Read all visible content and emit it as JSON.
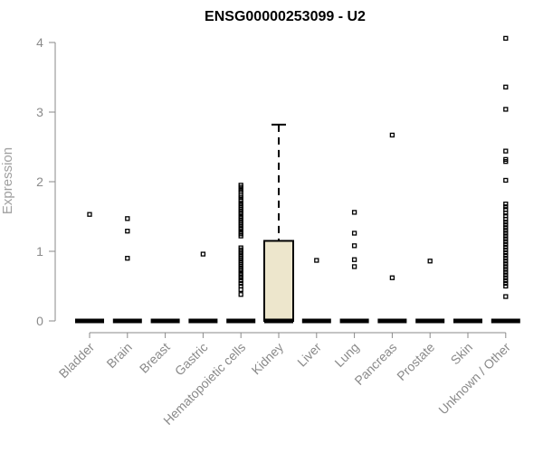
{
  "chart_data": {
    "type": "box",
    "title": "ENSG00000253099 - U2",
    "xlabel": "",
    "ylabel": "Expression",
    "ylim": [
      0,
      4.1
    ],
    "y_ticks": [
      "0",
      "1",
      "2",
      "3",
      "4"
    ],
    "box_fill": "#ede6cc",
    "categories": [
      "Bladder",
      "Brain",
      "Breast",
      "Gastric",
      "Hematopoietic cells",
      "Kidney",
      "Liver",
      "Lung",
      "Pancreas",
      "Prostate",
      "Skin",
      "Unknown / Other"
    ],
    "groups": [
      {
        "name": "Bladder",
        "q1": 0,
        "median": 0,
        "q3": 0,
        "whisker_low": 0,
        "whisker_high": 0,
        "outliers": [
          1.53
        ]
      },
      {
        "name": "Brain",
        "q1": 0,
        "median": 0,
        "q3": 0,
        "whisker_low": 0,
        "whisker_high": 0,
        "outliers": [
          1.47,
          1.29,
          0.9
        ]
      },
      {
        "name": "Breast",
        "q1": 0,
        "median": 0,
        "q3": 0,
        "whisker_low": 0,
        "whisker_high": 0,
        "outliers": []
      },
      {
        "name": "Gastric",
        "q1": 0,
        "median": 0,
        "q3": 0,
        "whisker_low": 0,
        "whisker_high": 0,
        "outliers": [
          0.96
        ]
      },
      {
        "name": "Hematopoietic cells",
        "q1": 0,
        "median": 0,
        "q3": 0,
        "whisker_low": 0,
        "whisker_high": 0,
        "outliers": [
          1.95,
          1.92,
          1.88,
          1.85,
          1.8,
          1.77,
          1.73,
          1.69,
          1.66,
          1.63,
          1.6,
          1.57,
          1.54,
          1.5,
          1.47,
          1.44,
          1.41,
          1.38,
          1.35,
          1.32,
          1.28,
          1.25,
          1.22,
          1.05,
          1.02,
          0.99,
          0.96,
          0.93,
          0.9,
          0.87,
          0.84,
          0.81,
          0.78,
          0.75,
          0.72,
          0.68,
          0.65,
          0.62,
          0.58,
          0.54,
          0.5,
          0.45,
          0.38
        ]
      },
      {
        "name": "Kidney",
        "q1": 0,
        "median": 0,
        "q3": 1.15,
        "whisker_low": 0,
        "whisker_high": 2.82,
        "outliers": []
      },
      {
        "name": "Liver",
        "q1": 0,
        "median": 0,
        "q3": 0,
        "whisker_low": 0,
        "whisker_high": 0,
        "outliers": [
          0.87
        ]
      },
      {
        "name": "Lung",
        "q1": 0,
        "median": 0,
        "q3": 0,
        "whisker_low": 0,
        "whisker_high": 0,
        "outliers": [
          1.56,
          1.26,
          1.08,
          0.88,
          0.78
        ]
      },
      {
        "name": "Pancreas",
        "q1": 0,
        "median": 0,
        "q3": 0,
        "whisker_low": 0,
        "whisker_high": 0,
        "outliers": [
          2.67,
          0.62
        ]
      },
      {
        "name": "Prostate",
        "q1": 0,
        "median": 0,
        "q3": 0,
        "whisker_low": 0,
        "whisker_high": 0,
        "outliers": [
          0.86
        ]
      },
      {
        "name": "Skin",
        "q1": 0,
        "median": 0,
        "q3": 0,
        "whisker_low": 0,
        "whisker_high": 0,
        "outliers": []
      },
      {
        "name": "Unknown / Other",
        "q1": 0,
        "median": 0,
        "q3": 0,
        "whisker_low": 0,
        "whisker_high": 0,
        "outliers": [
          4.06,
          3.36,
          3.04,
          2.44,
          2.32,
          2.29,
          2.02,
          1.68,
          1.64,
          1.6,
          1.55,
          1.51,
          1.46,
          1.42,
          1.38,
          1.34,
          1.3,
          1.26,
          1.22,
          1.18,
          1.14,
          1.1,
          1.06,
          1.02,
          0.98,
          0.94,
          0.9,
          0.86,
          0.82,
          0.78,
          0.74,
          0.7,
          0.66,
          0.62,
          0.58,
          0.54,
          0.5,
          0.35
        ]
      }
    ]
  }
}
